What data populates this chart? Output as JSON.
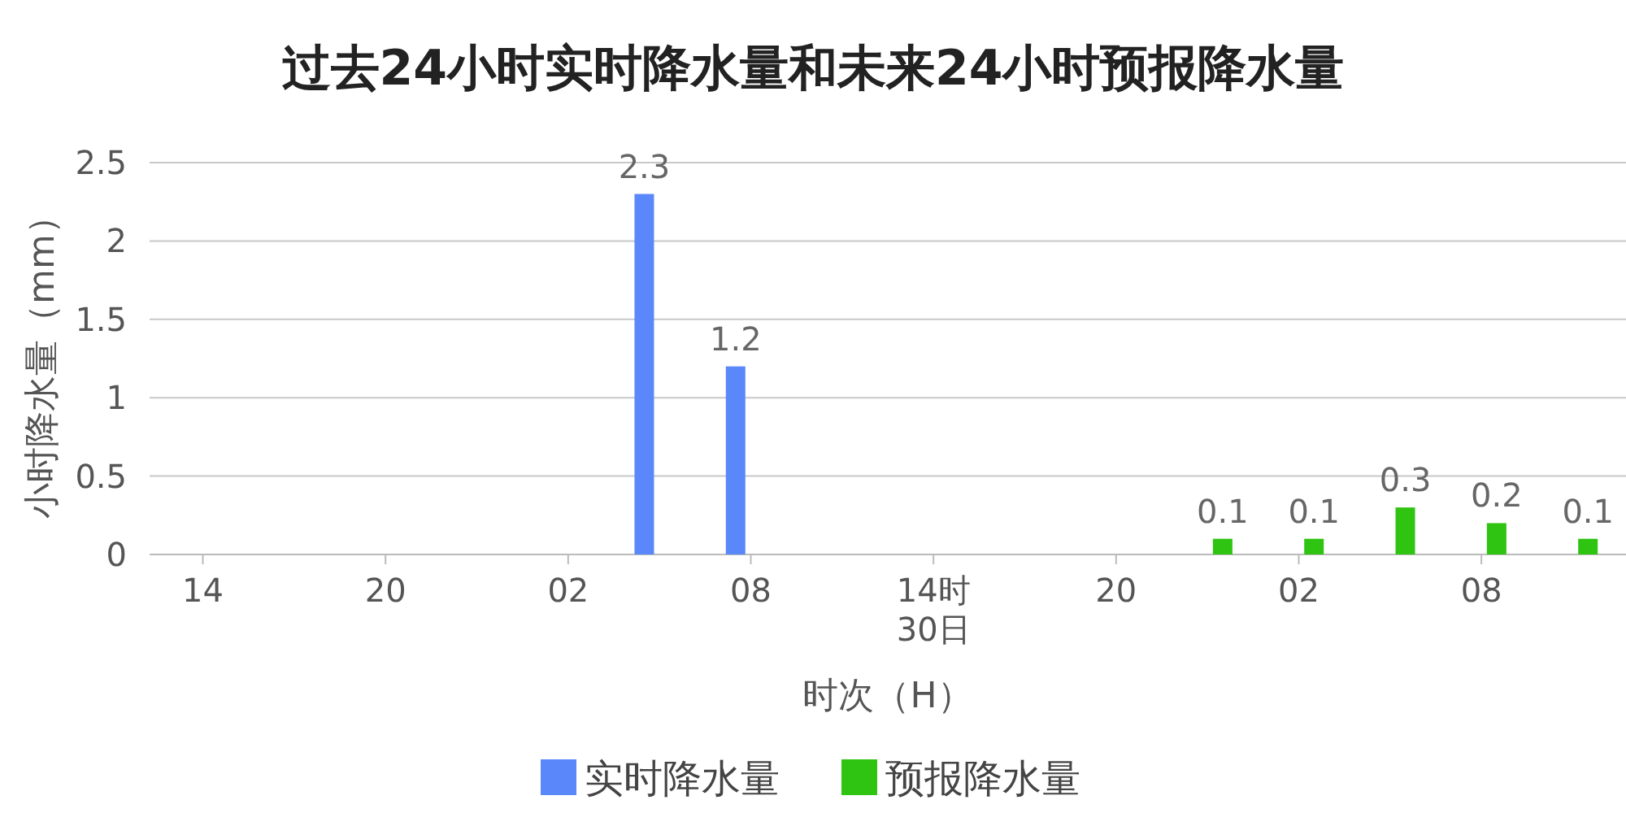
{
  "chart_data": {
    "type": "bar",
    "title": "过去24小时实时降水量和未来24小时预报降水量",
    "xlabel": "时次（H）",
    "ylabel": "小时降水量（mm）",
    "categories": [
      null,
      null,
      null,
      "14",
      null,
      null,
      null,
      null,
      null,
      null,
      null,
      null,
      null,
      null,
      null,
      "20",
      null,
      null,
      null,
      null,
      null,
      null,
      null,
      null,
      null,
      null,
      null,
      "02",
      null,
      null,
      null,
      null,
      null,
      null,
      null,
      null,
      null,
      null,
      null,
      "08",
      null,
      null,
      null,
      null,
      null,
      null,
      null,
      null,
      null,
      null,
      null,
      "14时\n30日",
      null,
      null,
      null,
      null,
      null,
      null,
      null,
      null,
      null,
      null,
      null,
      "20",
      null,
      null,
      null,
      null,
      null,
      null,
      null,
      null,
      null,
      null,
      null,
      "02",
      null,
      null,
      null,
      null,
      null,
      null,
      null,
      null,
      null,
      null,
      null,
      "08",
      null,
      null,
      null,
      null,
      null,
      null,
      null,
      null,
      null
    ],
    "ylim": [
      0,
      2.5
    ],
    "yticks": [
      0,
      0.5,
      1,
      1.5,
      2,
      2.5
    ],
    "grid": "y",
    "legend": "bottom",
    "data_labels": true,
    "series": [
      {
        "name": "实时降水量",
        "color": "#5a87fa",
        "values": [
          null,
          null,
          null,
          null,
          null,
          null,
          null,
          null,
          null,
          null,
          null,
          null,
          null,
          null,
          null,
          null,
          null,
          null,
          null,
          null,
          null,
          null,
          null,
          null,
          null,
          null,
          null,
          null,
          null,
          null,
          null,
          null,
          2.3,
          null,
          null,
          null,
          null,
          null,
          1.2,
          null,
          null,
          null,
          null,
          null,
          null,
          null,
          null,
          null,
          null,
          null,
          null,
          null,
          null,
          null,
          null,
          null,
          null,
          null,
          null,
          null,
          null,
          null,
          null,
          null,
          null,
          null,
          null,
          null,
          null,
          null,
          null,
          null,
          null,
          null,
          null,
          null,
          null,
          null,
          null,
          null,
          null,
          null,
          null,
          null,
          null,
          null,
          null,
          null,
          null,
          null,
          null,
          null,
          null,
          null,
          null,
          null,
          null
        ]
      },
      {
        "name": "预报降水量",
        "color": "#2fc411",
        "values": [
          null,
          null,
          null,
          null,
          null,
          null,
          null,
          null,
          null,
          null,
          null,
          null,
          null,
          null,
          null,
          null,
          null,
          null,
          null,
          null,
          null,
          null,
          null,
          null,
          null,
          null,
          null,
          null,
          null,
          null,
          null,
          null,
          null,
          null,
          null,
          null,
          null,
          null,
          null,
          null,
          null,
          null,
          null,
          null,
          null,
          null,
          null,
          null,
          null,
          null,
          null,
          null,
          null,
          null,
          null,
          null,
          null,
          null,
          null,
          null,
          null,
          null,
          null,
          null,
          null,
          null,
          null,
          null,
          null,
          null,
          0.1,
          null,
          null,
          null,
          null,
          null,
          0.1,
          null,
          null,
          null,
          null,
          null,
          0.3,
          null,
          null,
          null,
          null,
          null,
          0.2,
          null,
          null,
          null,
          null,
          null,
          0.1,
          null,
          null
        ]
      }
    ]
  }
}
